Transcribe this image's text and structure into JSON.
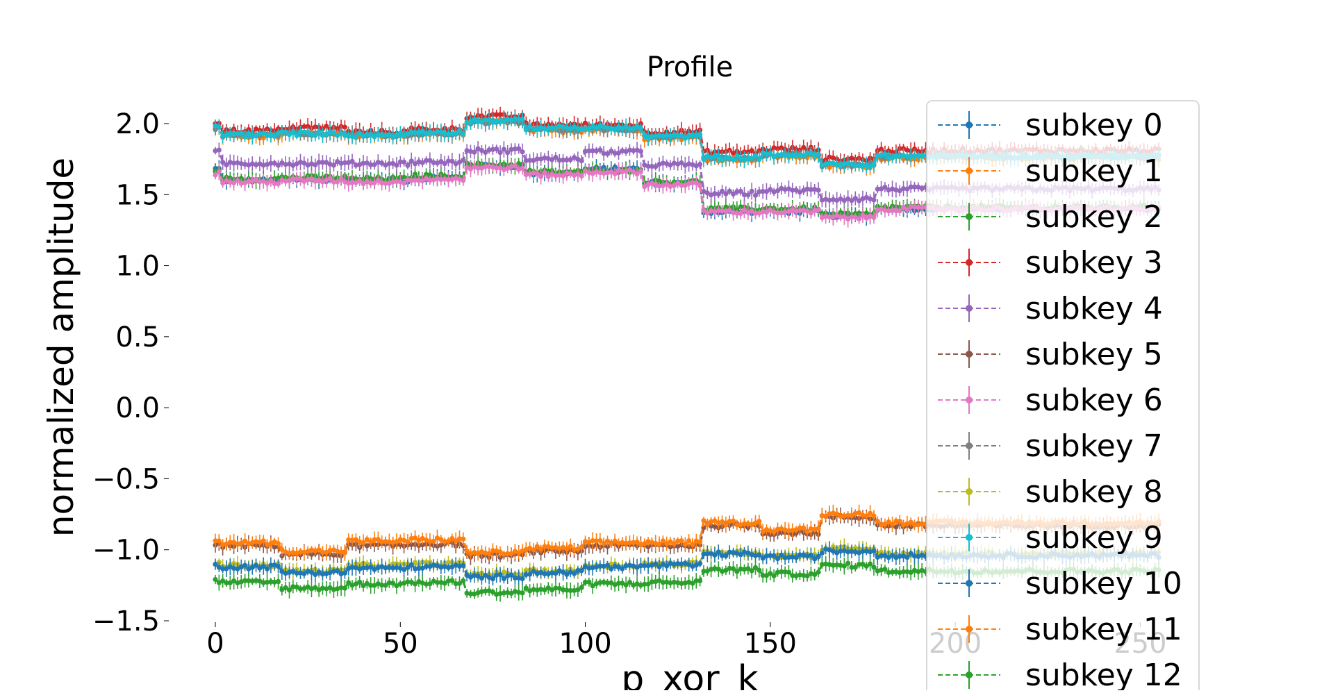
{
  "chart_data": {
    "type": "line",
    "title": "Profile",
    "xlabel": "p_xor_k",
    "ylabel": "normalized amplitude",
    "xlim": [
      -10,
      265
    ],
    "ylim": [
      -1.5,
      2.15
    ],
    "xticks": [
      0,
      50,
      100,
      150,
      200,
      250
    ],
    "xtick_labels": [
      "0",
      "50",
      "100",
      "150",
      "200",
      "250"
    ],
    "yticks": [
      2.0,
      1.5,
      1.0,
      0.5,
      0.0,
      -0.5,
      -1.0,
      -1.5
    ],
    "ytick_labels": [
      "2.0",
      "1.5",
      "1.0",
      "0.5",
      "0.0",
      "−0.5",
      "−1.0",
      "−1.5"
    ],
    "x_range": [
      0,
      255
    ],
    "grid": false,
    "legend_position": "right",
    "note": "Each series is a step profile over p_xor_k = 0..255 with small noise and error bars; segment levels read off the figure.",
    "series": [
      {
        "name": "subkey 0",
        "color": "#1f77b4",
        "segments": [
          [
            0,
            1,
            1.68
          ],
          [
            2,
            17,
            1.6
          ],
          [
            18,
            35,
            1.6
          ],
          [
            36,
            52,
            1.6
          ],
          [
            53,
            67,
            1.62
          ],
          [
            68,
            83,
            1.7
          ],
          [
            84,
            99,
            1.65
          ],
          [
            100,
            115,
            1.68
          ],
          [
            116,
            131,
            1.58
          ],
          [
            132,
            147,
            1.38
          ],
          [
            148,
            163,
            1.38
          ],
          [
            164,
            178,
            1.35
          ],
          [
            179,
            255,
            1.4
          ]
        ]
      },
      {
        "name": "subkey 1",
        "color": "#ff7f0e",
        "segments": [
          [
            0,
            1,
            1.98
          ],
          [
            2,
            17,
            1.91
          ],
          [
            18,
            35,
            1.93
          ],
          [
            36,
            52,
            1.91
          ],
          [
            53,
            67,
            1.93
          ],
          [
            68,
            83,
            2.02
          ],
          [
            84,
            99,
            1.95
          ],
          [
            100,
            115,
            1.96
          ],
          [
            116,
            131,
            1.9
          ],
          [
            132,
            147,
            1.75
          ],
          [
            148,
            163,
            1.77
          ],
          [
            164,
            178,
            1.7
          ],
          [
            179,
            255,
            1.76
          ]
        ]
      },
      {
        "name": "subkey 2",
        "color": "#2ca02c",
        "segments": [
          [
            0,
            1,
            1.66
          ],
          [
            2,
            17,
            1.61
          ],
          [
            18,
            35,
            1.62
          ],
          [
            36,
            52,
            1.61
          ],
          [
            53,
            67,
            1.63
          ],
          [
            68,
            83,
            1.71
          ],
          [
            84,
            99,
            1.66
          ],
          [
            100,
            115,
            1.67
          ],
          [
            116,
            131,
            1.59
          ],
          [
            132,
            147,
            1.4
          ],
          [
            148,
            163,
            1.4
          ],
          [
            164,
            178,
            1.36
          ],
          [
            179,
            255,
            1.41
          ]
        ]
      },
      {
        "name": "subkey 3",
        "color": "#d62728",
        "segments": [
          [
            0,
            1,
            2.01
          ],
          [
            2,
            17,
            1.95
          ],
          [
            18,
            35,
            1.97
          ],
          [
            36,
            52,
            1.94
          ],
          [
            53,
            67,
            1.96
          ],
          [
            68,
            83,
            2.05
          ],
          [
            84,
            99,
            1.99
          ],
          [
            100,
            115,
            1.99
          ],
          [
            116,
            131,
            1.94
          ],
          [
            132,
            147,
            1.8
          ],
          [
            148,
            163,
            1.82
          ],
          [
            164,
            178,
            1.75
          ],
          [
            179,
            255,
            1.81
          ]
        ]
      },
      {
        "name": "subkey 4",
        "color": "#9467bd",
        "segments": [
          [
            0,
            1,
            1.8
          ],
          [
            2,
            17,
            1.72
          ],
          [
            18,
            35,
            1.72
          ],
          [
            36,
            52,
            1.72
          ],
          [
            53,
            67,
            1.73
          ],
          [
            68,
            83,
            1.81
          ],
          [
            84,
            99,
            1.75
          ],
          [
            100,
            115,
            1.8
          ],
          [
            116,
            131,
            1.71
          ],
          [
            132,
            147,
            1.51
          ],
          [
            148,
            163,
            1.53
          ],
          [
            164,
            178,
            1.47
          ],
          [
            179,
            255,
            1.54
          ]
        ]
      },
      {
        "name": "subkey 5",
        "color": "#8c564b",
        "segments": [
          [
            0,
            1,
            -0.97
          ],
          [
            2,
            17,
            -0.97
          ],
          [
            18,
            35,
            -1.03
          ],
          [
            36,
            52,
            -0.97
          ],
          [
            53,
            67,
            -0.96
          ],
          [
            68,
            83,
            -1.04
          ],
          [
            84,
            99,
            -1.01
          ],
          [
            100,
            115,
            -0.97
          ],
          [
            116,
            131,
            -0.97
          ],
          [
            132,
            147,
            -0.83
          ],
          [
            148,
            163,
            -0.88
          ],
          [
            164,
            178,
            -0.77
          ],
          [
            179,
            255,
            -0.83
          ]
        ]
      },
      {
        "name": "subkey 6",
        "color": "#e377c2",
        "segments": [
          [
            0,
            1,
            1.65
          ],
          [
            2,
            17,
            1.59
          ],
          [
            18,
            35,
            1.6
          ],
          [
            36,
            52,
            1.59
          ],
          [
            53,
            67,
            1.61
          ],
          [
            68,
            83,
            1.69
          ],
          [
            84,
            99,
            1.64
          ],
          [
            100,
            115,
            1.66
          ],
          [
            116,
            131,
            1.57
          ],
          [
            132,
            147,
            1.38
          ],
          [
            148,
            163,
            1.38
          ],
          [
            164,
            178,
            1.34
          ],
          [
            179,
            255,
            1.4
          ]
        ]
      },
      {
        "name": "subkey 7",
        "color": "#7f7f7f",
        "segments": [
          [
            0,
            1,
            1.97
          ],
          [
            2,
            17,
            1.92
          ],
          [
            18,
            35,
            1.93
          ],
          [
            36,
            52,
            1.92
          ],
          [
            53,
            67,
            1.93
          ],
          [
            68,
            83,
            2.01
          ],
          [
            84,
            99,
            1.96
          ],
          [
            100,
            115,
            1.96
          ],
          [
            116,
            131,
            1.91
          ],
          [
            132,
            147,
            1.76
          ],
          [
            148,
            163,
            1.78
          ],
          [
            164,
            178,
            1.71
          ],
          [
            179,
            255,
            1.77
          ]
        ]
      },
      {
        "name": "subkey 8",
        "color": "#bcbd22",
        "segments": [
          [
            0,
            1,
            -1.1
          ],
          [
            2,
            17,
            -1.11
          ],
          [
            18,
            35,
            -1.15
          ],
          [
            36,
            52,
            -1.11
          ],
          [
            53,
            67,
            -1.1
          ],
          [
            68,
            83,
            -1.17
          ],
          [
            84,
            99,
            -1.15
          ],
          [
            100,
            115,
            -1.11
          ],
          [
            116,
            131,
            -1.1
          ],
          [
            132,
            147,
            -1.02
          ],
          [
            148,
            163,
            -1.04
          ],
          [
            164,
            178,
            -0.99
          ],
          [
            179,
            255,
            -1.03
          ]
        ]
      },
      {
        "name": "subkey 9",
        "color": "#17becf",
        "segments": [
          [
            0,
            1,
            1.98
          ],
          [
            2,
            17,
            1.92
          ],
          [
            18,
            35,
            1.93
          ],
          [
            36,
            52,
            1.92
          ],
          [
            53,
            67,
            1.94
          ],
          [
            68,
            83,
            2.02
          ],
          [
            84,
            99,
            1.97
          ],
          [
            100,
            115,
            1.97
          ],
          [
            116,
            131,
            1.91
          ],
          [
            132,
            147,
            1.76
          ],
          [
            148,
            163,
            1.78
          ],
          [
            164,
            178,
            1.71
          ],
          [
            179,
            255,
            1.77
          ]
        ]
      },
      {
        "name": "subkey 10",
        "color": "#1f77b4",
        "segments": [
          [
            0,
            1,
            -1.11
          ],
          [
            2,
            17,
            -1.12
          ],
          [
            18,
            35,
            -1.16
          ],
          [
            36,
            52,
            -1.13
          ],
          [
            53,
            67,
            -1.12
          ],
          [
            68,
            83,
            -1.19
          ],
          [
            84,
            99,
            -1.16
          ],
          [
            100,
            115,
            -1.12
          ],
          [
            116,
            131,
            -1.11
          ],
          [
            132,
            147,
            -1.03
          ],
          [
            148,
            163,
            -1.05
          ],
          [
            164,
            178,
            -1.01
          ],
          [
            179,
            255,
            -1.04
          ]
        ]
      },
      {
        "name": "subkey 11",
        "color": "#ff7f0e",
        "segments": [
          [
            0,
            1,
            -0.94
          ],
          [
            2,
            17,
            -0.95
          ],
          [
            18,
            35,
            -1.01
          ],
          [
            36,
            52,
            -0.94
          ],
          [
            53,
            67,
            -0.93
          ],
          [
            68,
            83,
            -1.02
          ],
          [
            84,
            99,
            -0.99
          ],
          [
            100,
            115,
            -0.95
          ],
          [
            116,
            131,
            -0.95
          ],
          [
            132,
            147,
            -0.81
          ],
          [
            148,
            163,
            -0.86
          ],
          [
            164,
            178,
            -0.75
          ],
          [
            179,
            255,
            -0.81
          ]
        ]
      },
      {
        "name": "subkey 12",
        "color": "#2ca02c",
        "segments": [
          [
            0,
            1,
            -1.22
          ],
          [
            2,
            17,
            -1.23
          ],
          [
            18,
            35,
            -1.27
          ],
          [
            36,
            52,
            -1.24
          ],
          [
            53,
            67,
            -1.23
          ],
          [
            68,
            83,
            -1.3
          ],
          [
            84,
            99,
            -1.28
          ],
          [
            100,
            115,
            -1.24
          ],
          [
            116,
            131,
            -1.23
          ],
          [
            132,
            147,
            -1.14
          ],
          [
            148,
            163,
            -1.17
          ],
          [
            164,
            178,
            -1.11
          ],
          [
            179,
            255,
            -1.15
          ]
        ]
      }
    ]
  }
}
